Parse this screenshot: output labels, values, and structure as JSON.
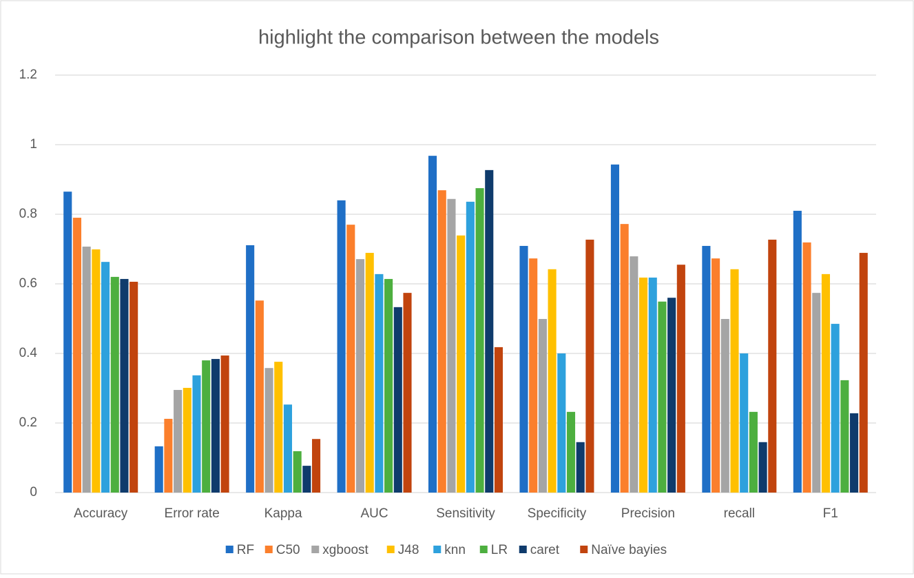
{
  "chart_data": {
    "type": "bar",
    "title": "highlight the comparison between the models",
    "categories": [
      "Accuracy",
      "Error rate",
      "Kappa",
      "AUC",
      "Sensitivity",
      "Specificity",
      "Precision",
      "recall",
      "F1"
    ],
    "series": [
      {
        "name": "RF",
        "color": "#1f6fc6",
        "values": [
          0.865,
          0.133,
          0.711,
          0.84,
          0.968,
          0.709,
          0.943,
          0.709,
          0.81
        ]
      },
      {
        "name": "C50",
        "color": "#fb7f2c",
        "values": [
          0.79,
          0.212,
          0.552,
          0.77,
          0.869,
          0.673,
          0.772,
          0.673,
          0.719
        ]
      },
      {
        "name": "xgboost",
        "color": "#a5a5a5",
        "values": [
          0.707,
          0.295,
          0.358,
          0.671,
          0.844,
          0.499,
          0.679,
          0.499,
          0.574
        ]
      },
      {
        "name": "J48",
        "color": "#ffc000",
        "values": [
          0.699,
          0.301,
          0.376,
          0.689,
          0.739,
          0.642,
          0.618,
          0.642,
          0.628
        ]
      },
      {
        "name": "knn",
        "color": "#2ea1dd",
        "values": [
          0.663,
          0.337,
          0.253,
          0.628,
          0.836,
          0.4,
          0.618,
          0.4,
          0.485
        ]
      },
      {
        "name": "LR",
        "color": "#4daf3f",
        "values": [
          0.62,
          0.38,
          0.119,
          0.614,
          0.875,
          0.232,
          0.549,
          0.232,
          0.323
        ]
      },
      {
        "name": "caret",
        "color": "#0f3b6c",
        "values": [
          0.614,
          0.384,
          0.077,
          0.533,
          0.927,
          0.145,
          0.56,
          0.145,
          0.228
        ]
      },
      {
        "name": "Naïve bayies",
        "color": "#c1440e",
        "values": [
          0.606,
          0.394,
          0.154,
          0.574,
          0.418,
          0.727,
          0.655,
          0.727,
          0.689
        ]
      }
    ],
    "ylim": [
      0,
      1.2
    ],
    "yticks": [
      0,
      0.2,
      0.4,
      0.6,
      0.8,
      1,
      1.2
    ],
    "grid": true,
    "legend": "bottom"
  }
}
